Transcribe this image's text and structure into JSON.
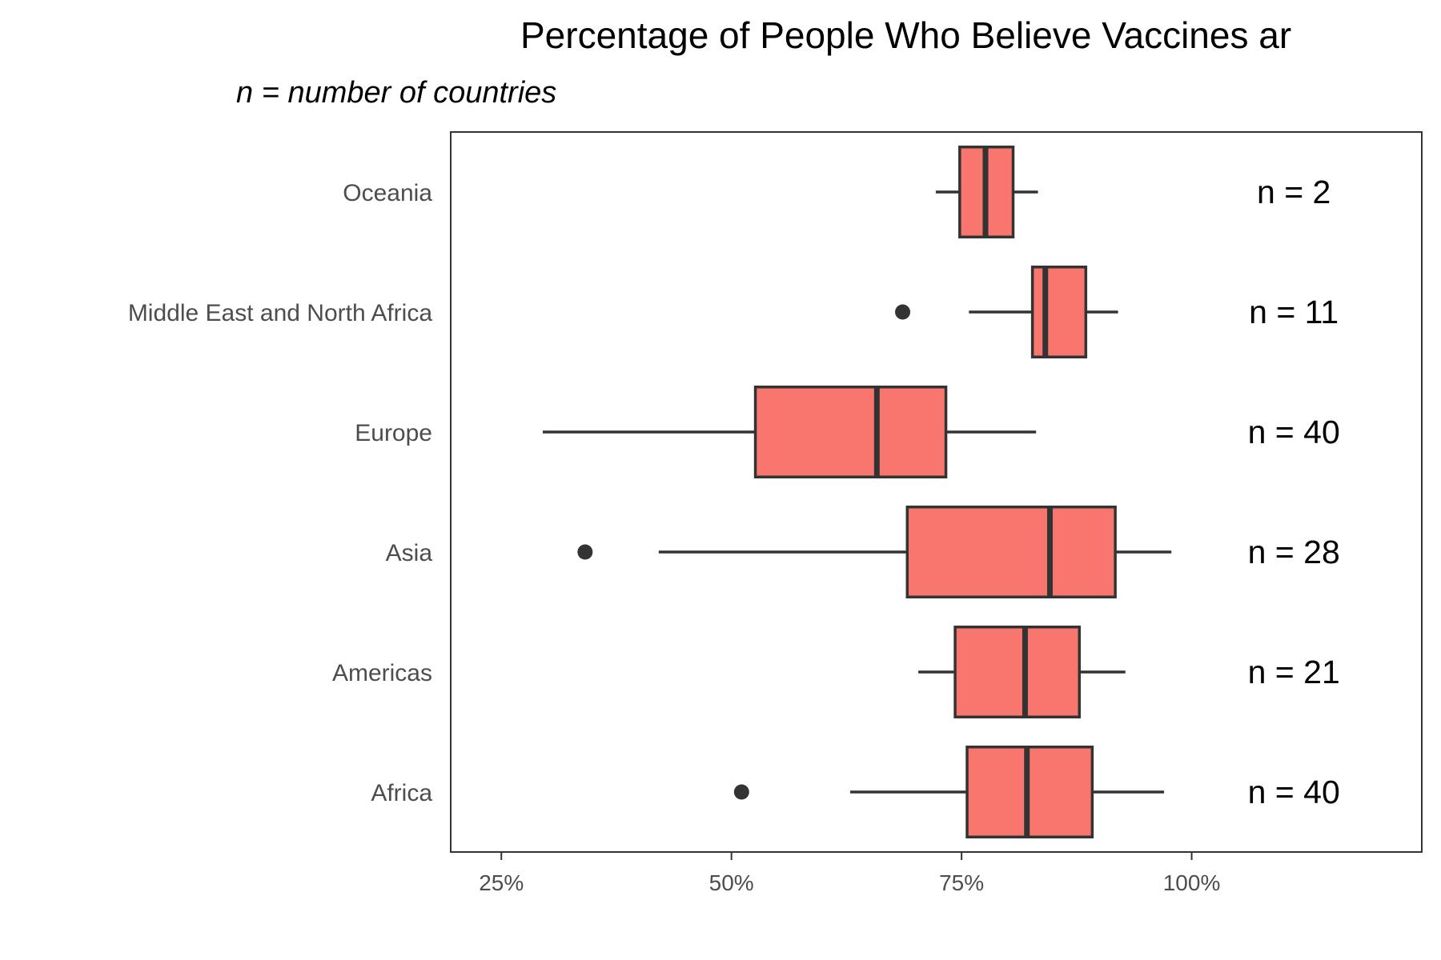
{
  "chart_data": {
    "type": "boxplot",
    "orientation": "horizontal",
    "title": "Percentage of People Who Believe Vaccines ar",
    "subtitle": "n = number of countries",
    "xlabel": "",
    "ylabel": "",
    "xlim": [
      19.5,
      125
    ],
    "xticks": [
      25,
      50,
      75,
      100
    ],
    "tick_labels": [
      "25%",
      "50%",
      "75%",
      "100%"
    ],
    "grid": false,
    "fill_color": "#F8766D",
    "stroke_color": "#333333",
    "categories": [
      "Africa",
      "Americas",
      "Asia",
      "Europe",
      "Middle East and North Africa",
      "Oceania"
    ],
    "boxes": [
      {
        "category": "Africa",
        "whisker_low": 62.9,
        "q1": 75.6,
        "median": 82.1,
        "q3": 89.2,
        "whisker_high": 97.0,
        "outliers": [
          51.1
        ],
        "n_label": "n = 40"
      },
      {
        "category": "Americas",
        "whisker_low": 70.3,
        "q1": 74.3,
        "median": 81.9,
        "q3": 87.8,
        "whisker_high": 92.8,
        "outliers": [],
        "n_label": "n = 21"
      },
      {
        "category": "Asia",
        "whisker_low": 42.1,
        "q1": 69.1,
        "median": 84.6,
        "q3": 91.7,
        "whisker_high": 97.8,
        "outliers": [
          34.1
        ],
        "n_label": "n = 28"
      },
      {
        "category": "Europe",
        "whisker_low": 29.5,
        "q1": 52.6,
        "median": 65.8,
        "q3": 73.3,
        "whisker_high": 83.1,
        "outliers": [],
        "n_label": "n = 40"
      },
      {
        "category": "Middle East and North Africa",
        "whisker_low": 75.8,
        "q1": 82.7,
        "median": 84.1,
        "q3": 88.5,
        "whisker_high": 92.0,
        "outliers": [
          68.6
        ],
        "n_label": "n = 11"
      },
      {
        "category": "Oceania",
        "whisker_low": 72.2,
        "q1": 74.8,
        "median": 77.6,
        "q3": 80.6,
        "whisker_high": 83.3,
        "outliers": [],
        "n_label": "n = 2"
      }
    ]
  }
}
